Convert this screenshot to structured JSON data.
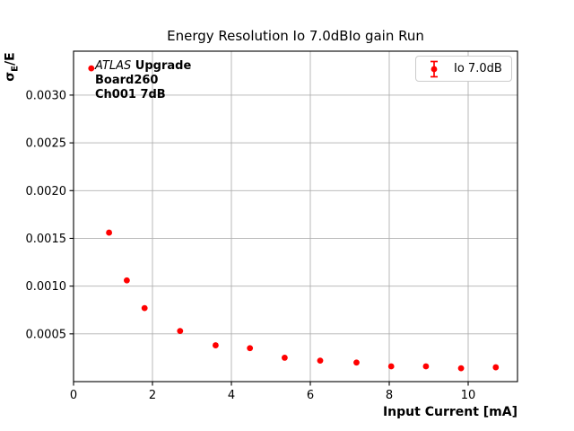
{
  "chart_data": {
    "type": "scatter",
    "title": "Energy Resolution Io 7.0dBIo gain Run",
    "xlabel": "Input Current [mA]",
    "ylabel": "σ_E/E",
    "ylabel_parts": {
      "sigma": "σ",
      "sub": "E",
      "rest": "/E"
    },
    "xlim": [
      0,
      11.25
    ],
    "ylim": [
      0,
      0.00346
    ],
    "xticks": [
      0,
      2,
      4,
      6,
      8,
      10
    ],
    "yticks": [
      0.0005,
      0.001,
      0.0015,
      0.002,
      0.0025,
      0.003
    ],
    "grid": true,
    "legend_position": "upper right",
    "series": [
      {
        "name": "Io 7.0dB",
        "marker": "errorbar-dot",
        "x": [
          0.45,
          0.9,
          1.35,
          1.8,
          2.7,
          3.6,
          4.47,
          5.35,
          6.25,
          7.17,
          8.05,
          8.93,
          9.82,
          10.7
        ],
        "y": [
          0.00328,
          0.00156,
          0.00106,
          0.00077,
          0.00053,
          0.00038,
          0.00035,
          0.00025,
          0.00022,
          0.0002,
          0.00016,
          0.00016,
          0.00014,
          0.00015
        ]
      }
    ],
    "annotation": {
      "line1_italic": "ATLAS",
      "line1_bold": " Upgrade",
      "line2": "Board260",
      "line3": "Ch001 7dB"
    },
    "colors": {
      "marker": "#ff0000",
      "grid": "#b0b0b0",
      "axis": "#000000",
      "legend_border": "#cccccc",
      "background": "#ffffff"
    }
  }
}
